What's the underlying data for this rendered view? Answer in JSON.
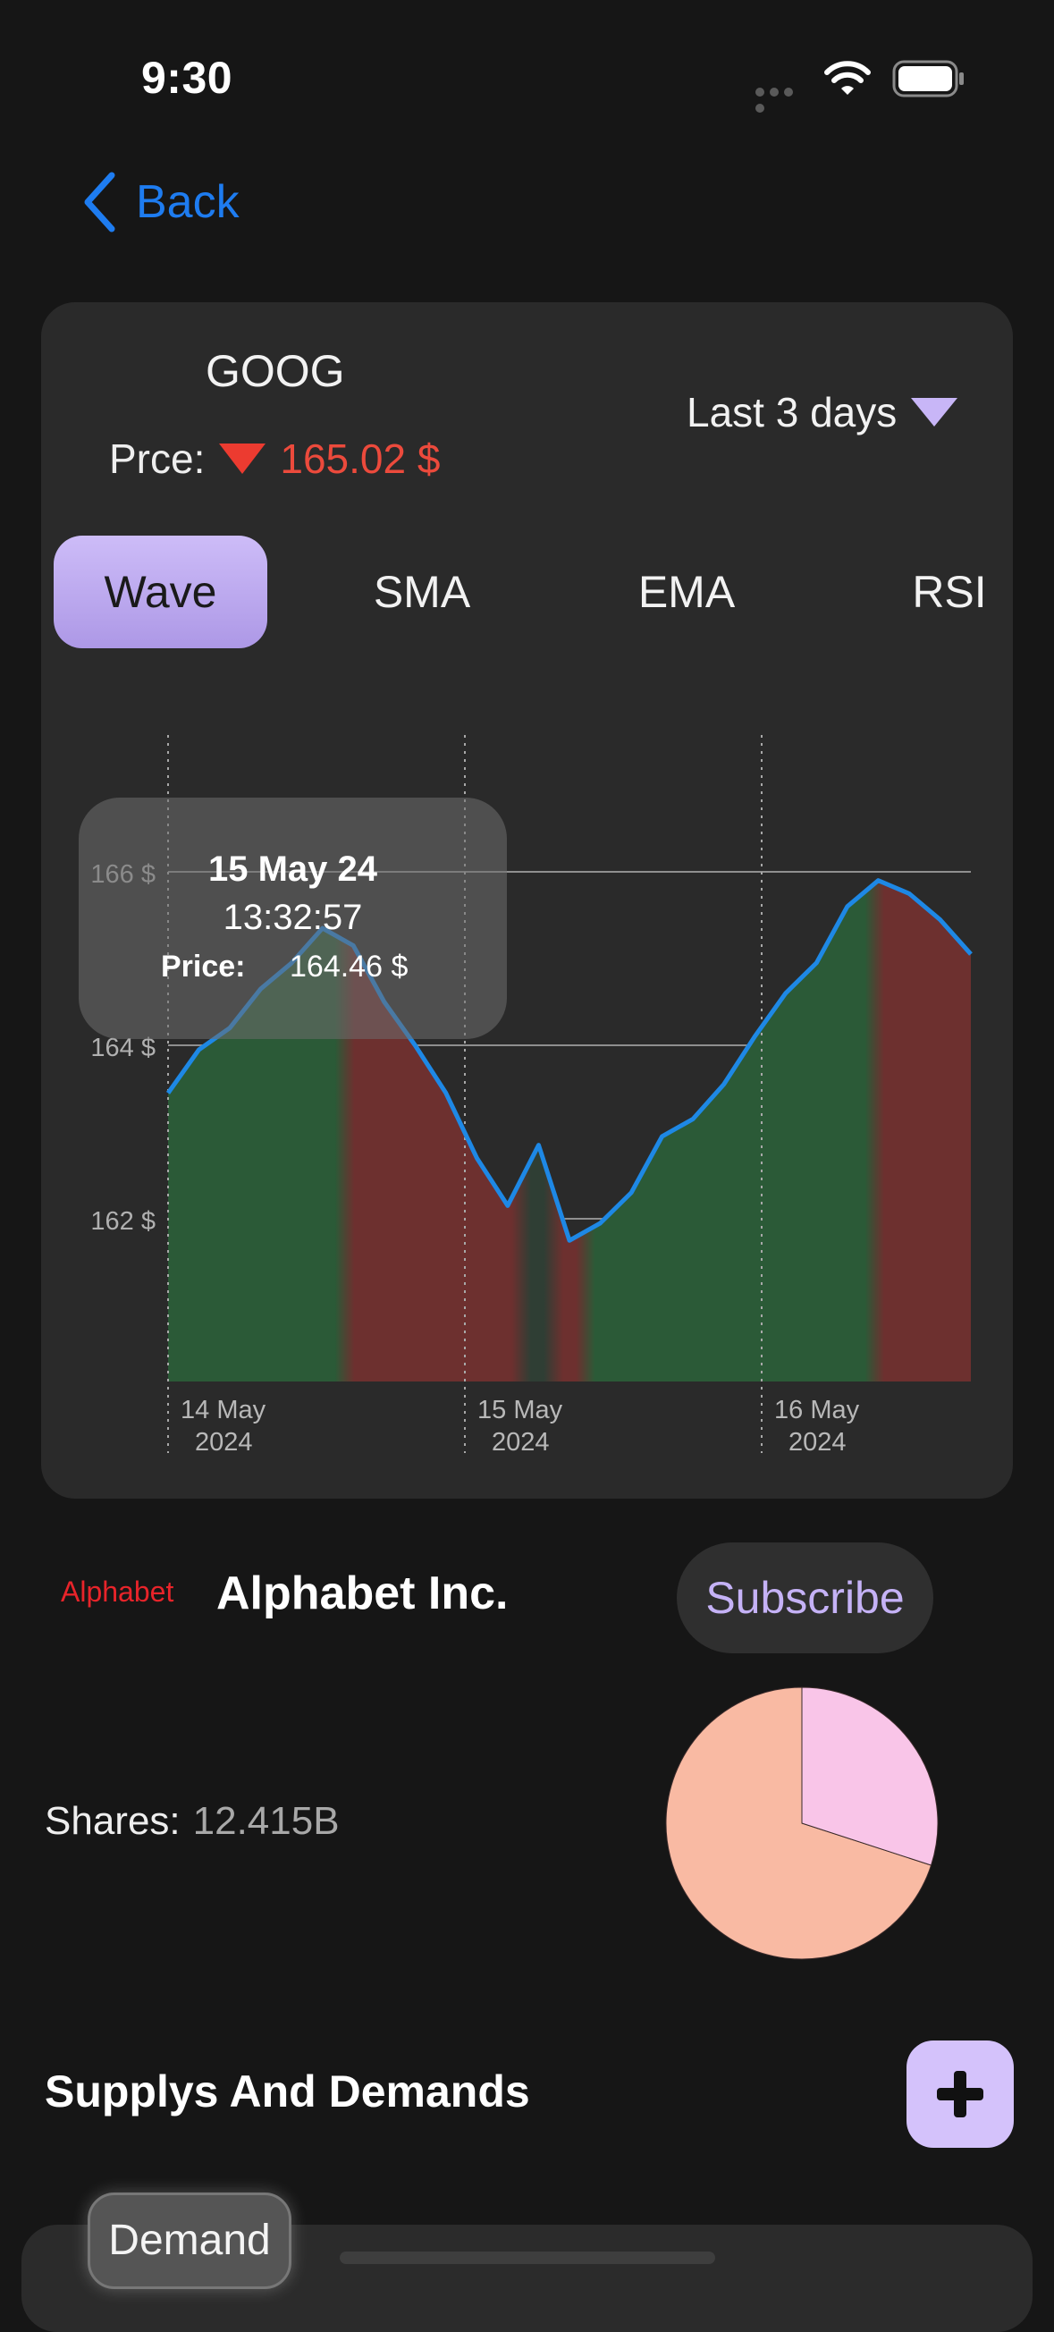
{
  "status_bar": {
    "time": "9:30"
  },
  "nav": {
    "back_label": "Back"
  },
  "stock": {
    "ticker": "GOOG",
    "price_label": "Prce:",
    "price_value": "165.02 $",
    "range_label": "Last 3 days"
  },
  "tabs": [
    {
      "label": "Wave",
      "active": true
    },
    {
      "label": "SMA",
      "active": false
    },
    {
      "label": "EMA",
      "active": false
    },
    {
      "label": "RSI",
      "active": false
    }
  ],
  "tooltip": {
    "date": "15 May 24",
    "time": "13:32:57",
    "price_label": "Price:",
    "price_value": "164.46 $"
  },
  "chart_data": {
    "type": "area",
    "y_ticks": [
      "166 $",
      "164 $",
      "162 $"
    ],
    "y_tick_values": [
      166,
      164,
      162
    ],
    "ylim": [
      160.2,
      167
    ],
    "x_ticks": [
      {
        "line1": "14 May",
        "line2": "2024"
      },
      {
        "line1": "15 May",
        "line2": "2024"
      },
      {
        "line1": "16 May",
        "line2": "2024"
      }
    ],
    "series": [
      {
        "values": [
          163.45,
          163.95,
          164.2,
          164.65,
          164.95,
          165.35,
          165.15,
          164.5,
          164.0,
          163.45,
          162.7,
          162.15,
          162.85,
          161.75,
          161.95,
          162.3,
          162.95,
          163.15,
          163.55,
          164.1,
          164.6,
          164.95,
          165.6,
          165.9,
          165.75,
          165.45,
          165.05
        ],
        "color": "#1e88e5"
      }
    ],
    "trend_fills": {
      "up": "#2b5a37",
      "down": "#6d302f",
      "flat": "#2f3e34"
    },
    "trend_segments": [
      "up",
      "down",
      "flat",
      "down",
      "up",
      "down"
    ]
  },
  "company": {
    "logo_text": "Alphabet",
    "name": "Alphabet Inc.",
    "subscribe_label": "Subscribe"
  },
  "shares": {
    "label": "Shares:",
    "value": "12.415B",
    "pie": [
      {
        "value": 0.7,
        "color": "#f9baa3"
      },
      {
        "value": 0.3,
        "color": "#f9c5e8"
      }
    ]
  },
  "supply_demand": {
    "title": "Supplys And Demands",
    "demand_label": "Demand"
  }
}
